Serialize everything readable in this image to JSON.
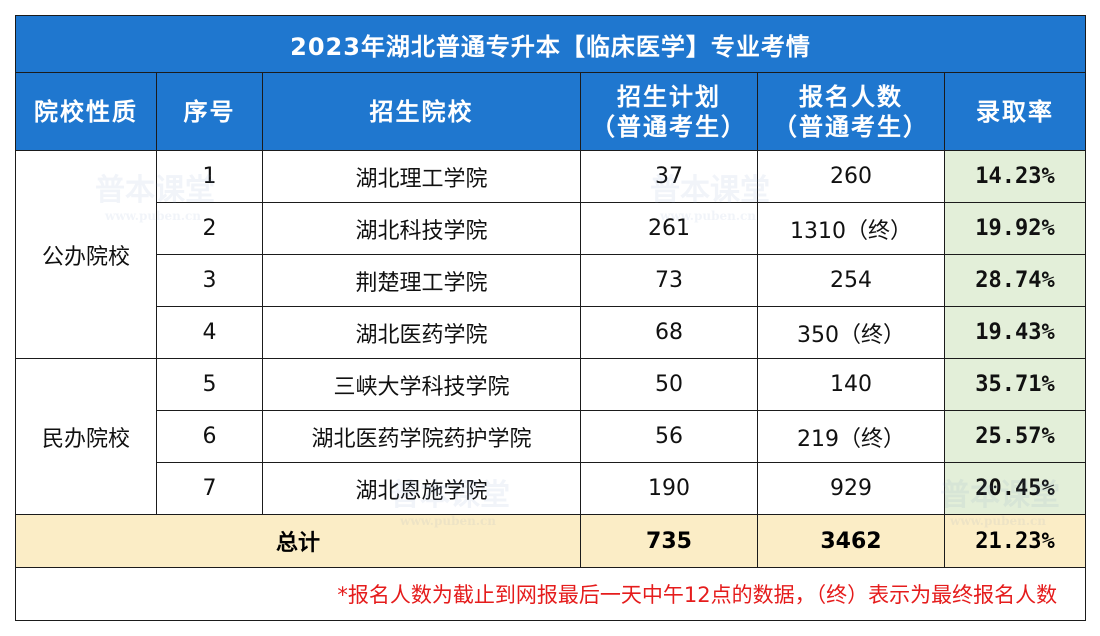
{
  "title": "2023年湖北普通专升本【临床医学】专业考情",
  "headers": {
    "type": "院校性质",
    "index": "序号",
    "school": "招生院校",
    "plan_line1": "招生计划",
    "plan_line2": "（普通考生）",
    "applicants_line1": "报名人数",
    "applicants_line2": "（普通考生）",
    "rate": "录取率"
  },
  "groups": {
    "public": "公办院校",
    "private": "民办院校"
  },
  "rows": [
    {
      "index": "1",
      "school": "湖北理工学院",
      "plan": "37",
      "applicants": "260",
      "rate": "14.23%"
    },
    {
      "index": "2",
      "school": "湖北科技学院",
      "plan": "261",
      "applicants": "1310（终）",
      "rate": "19.92%"
    },
    {
      "index": "3",
      "school": "荆楚理工学院",
      "plan": "73",
      "applicants": "254",
      "rate": "28.74%"
    },
    {
      "index": "4",
      "school": "湖北医药学院",
      "plan": "68",
      "applicants": "350（终）",
      "rate": "19.43%"
    },
    {
      "index": "5",
      "school": "三峡大学科技学院",
      "plan": "50",
      "applicants": "140",
      "rate": "35.71%"
    },
    {
      "index": "6",
      "school": "湖北医药学院药护学院",
      "plan": "56",
      "applicants": "219（终）",
      "rate": "25.57%"
    },
    {
      "index": "7",
      "school": "湖北恩施学院",
      "plan": "190",
      "applicants": "929",
      "rate": "20.45%"
    }
  ],
  "total": {
    "label": "总计",
    "plan": "735",
    "applicants": "3462",
    "rate": "21.23%"
  },
  "note": "*报名人数为截止到网报最后一天中午12点的数据，（终）表示为最终报名人数",
  "watermark": {
    "text": "普本课堂",
    "sub": "www.puben.cn"
  },
  "colors": {
    "header": "#1f77cf",
    "rate_bg": "#e3efd9",
    "total_bg": "#fbedc6",
    "note": "#e51c1c"
  }
}
